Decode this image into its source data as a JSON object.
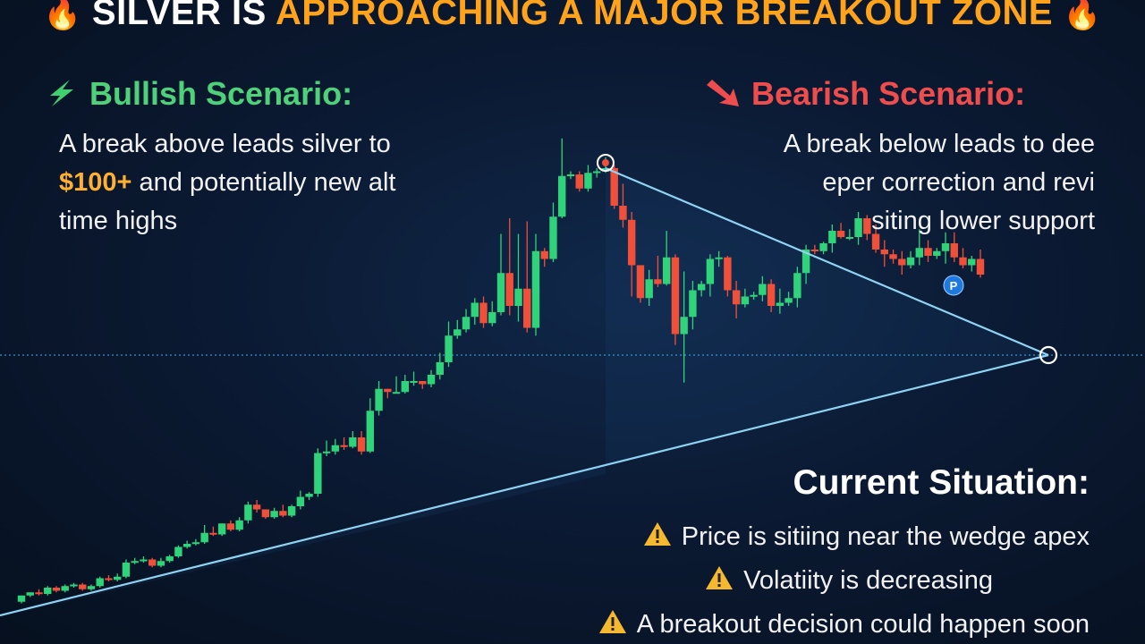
{
  "header": {
    "title_white": "SILVER IS ",
    "title_orange": "APPROACHING A MAJOR BREAKOUT ZONE",
    "left_icon": "fire-icon",
    "right_icon": "fire-icon"
  },
  "bullish": {
    "icon": "lightning-bolt-icon",
    "heading": "Bullish Scenario:",
    "line1": "A break above leads silver to",
    "highlight": "$100+",
    "line2_rest": " and potentially new alt",
    "line3": "time highs"
  },
  "bearish": {
    "icon": "down-right-arrow-icon",
    "heading": "Bearish Scenario:",
    "line1": "A break below leads to dee",
    "line2": "eper correction and revi",
    "line3": "siting lower support"
  },
  "situation": {
    "heading": "Current Situation:",
    "items": [
      {
        "icon": "warning-icon",
        "text": "Price is sitiing near the wedge apex"
      },
      {
        "icon": "warning-icon",
        "text": "Volatiity is decreasing"
      },
      {
        "icon": "warning-icon",
        "text": "A breakout decision could happen soon"
      }
    ]
  },
  "colors": {
    "bull": "#2fd47a",
    "bear": "#f0503a",
    "trendline": "#8fd3f2",
    "title_accent": "#ffa31a"
  },
  "chart_data": {
    "type": "candlestick",
    "title": "SILVER IS APPROACHING A MAJOR BREAKOUT ZONE",
    "pattern": "symmetrical triangle / wedge",
    "candles": [
      [
        27,
        31,
        26,
        31
      ],
      [
        31,
        33,
        30,
        33
      ],
      [
        33,
        32,
        31,
        35
      ],
      [
        32,
        36,
        31,
        37
      ],
      [
        36,
        34,
        33,
        37
      ],
      [
        34,
        37,
        33,
        38
      ],
      [
        37,
        38,
        36,
        39
      ],
      [
        38,
        35,
        34,
        39
      ],
      [
        35,
        37,
        34,
        38
      ],
      [
        37,
        42,
        36,
        43
      ],
      [
        42,
        41,
        40,
        44
      ],
      [
        41,
        43,
        40,
        45
      ],
      [
        43,
        52,
        42,
        54
      ],
      [
        52,
        53,
        51,
        55
      ],
      [
        53,
        54,
        52,
        56
      ],
      [
        54,
        50,
        49,
        55
      ],
      [
        50,
        53,
        49,
        55
      ],
      [
        53,
        56,
        52,
        57
      ],
      [
        56,
        62,
        55,
        63
      ],
      [
        62,
        64,
        61,
        66
      ],
      [
        64,
        65,
        63,
        67
      ],
      [
        65,
        71,
        64,
        76
      ],
      [
        71,
        70,
        69,
        75
      ],
      [
        70,
        77,
        69,
        77
      ],
      [
        77,
        73,
        72,
        79
      ],
      [
        73,
        79,
        72,
        81
      ],
      [
        79,
        89,
        77,
        91
      ],
      [
        89,
        86,
        84,
        92
      ],
      [
        86,
        81,
        80,
        86
      ],
      [
        81,
        85,
        80,
        87
      ],
      [
        85,
        82,
        81,
        89
      ],
      [
        82,
        88,
        81,
        89
      ],
      [
        88,
        94,
        86,
        98
      ],
      [
        94,
        96,
        92,
        97
      ],
      [
        96,
        122,
        94,
        125
      ],
      [
        122,
        123,
        120,
        130
      ],
      [
        123,
        127,
        121,
        131
      ],
      [
        127,
        126,
        124,
        132
      ],
      [
        126,
        132,
        125,
        136
      ],
      [
        132,
        123,
        121,
        136
      ],
      [
        123,
        149,
        122,
        157
      ],
      [
        149,
        163,
        146,
        168
      ],
      [
        163,
        161,
        157,
        163
      ],
      [
        161,
        161,
        160,
        171
      ],
      [
        161,
        168,
        160,
        172
      ],
      [
        168,
        168,
        165,
        174
      ],
      [
        168,
        166,
        163,
        168
      ],
      [
        166,
        172,
        164,
        175
      ],
      [
        172,
        180,
        169,
        186
      ],
      [
        180,
        197,
        177,
        206
      ],
      [
        197,
        201,
        195,
        207
      ],
      [
        201,
        209,
        199,
        214
      ],
      [
        209,
        218,
        204,
        221
      ],
      [
        218,
        205,
        202,
        222
      ],
      [
        205,
        212,
        203,
        219
      ],
      [
        212,
        237,
        210,
        262
      ],
      [
        237,
        216,
        210,
        272
      ],
      [
        216,
        227,
        206,
        262
      ],
      [
        227,
        202,
        199,
        270
      ],
      [
        202,
        251,
        197,
        262
      ],
      [
        251,
        246,
        241,
        253
      ],
      [
        246,
        273,
        244,
        282
      ],
      [
        273,
        299,
        272,
        323
      ],
      [
        299,
        300,
        297,
        302
      ],
      [
        300,
        291,
        289,
        302
      ],
      [
        291,
        301,
        289,
        306
      ],
      [
        301,
        302,
        298,
        304
      ],
      [
        302,
        304,
        301,
        311
      ],
      [
        304,
        280,
        278,
        306
      ],
      [
        280,
        271,
        266,
        294
      ],
      [
        271,
        242,
        222,
        276
      ],
      [
        242,
        221,
        218,
        241
      ],
      [
        221,
        233,
        216,
        239
      ],
      [
        233,
        230,
        228,
        248
      ],
      [
        230,
        247,
        229,
        264
      ],
      [
        247,
        198,
        191,
        249
      ],
      [
        198,
        209,
        167,
        238
      ],
      [
        209,
        226,
        201,
        232
      ],
      [
        226,
        230,
        222,
        232
      ],
      [
        230,
        246,
        222,
        249
      ],
      [
        246,
        247,
        241,
        251
      ],
      [
        247,
        226,
        222,
        248
      ],
      [
        226,
        217,
        208,
        232
      ],
      [
        217,
        222,
        215,
        227
      ],
      [
        222,
        223,
        220,
        225
      ],
      [
        223,
        230,
        219,
        235
      ],
      [
        230,
        216,
        212,
        233
      ],
      [
        216,
        218,
        211,
        227
      ],
      [
        218,
        221,
        216,
        225
      ],
      [
        221,
        237,
        215,
        241
      ],
      [
        237,
        252,
        230,
        255
      ],
      [
        252,
        251,
        249,
        255
      ],
      [
        251,
        256,
        249,
        257
      ],
      [
        256,
        264,
        250,
        268
      ],
      [
        264,
        260,
        259,
        269
      ],
      [
        260,
        260,
        258,
        265
      ],
      [
        260,
        272,
        255,
        276
      ],
      [
        272,
        262,
        258,
        274
      ],
      [
        262,
        252,
        250,
        268
      ],
      [
        252,
        249,
        241,
        258
      ],
      [
        249,
        246,
        243,
        252
      ],
      [
        246,
        242,
        236,
        251
      ],
      [
        242,
        247,
        240,
        251
      ],
      [
        247,
        253,
        242,
        265
      ],
      [
        253,
        248,
        244,
        258
      ],
      [
        248,
        251,
        246,
        253
      ],
      [
        251,
        256,
        243,
        263
      ],
      [
        256,
        247,
        244,
        263
      ],
      [
        247,
        242,
        240,
        253
      ],
      [
        242,
        246,
        238,
        248
      ],
      [
        246,
        236,
        234,
        252
      ]
    ],
    "annotations": {
      "upper_trendline": "descending resistance from the spike high to the apex",
      "lower_trendline": "ascending support from the lows to the apex",
      "apex_marker": "circle",
      "top_marker": "circle",
      "badge": "P"
    },
    "ylim": [
      0,
      340
    ],
    "grid": false
  }
}
